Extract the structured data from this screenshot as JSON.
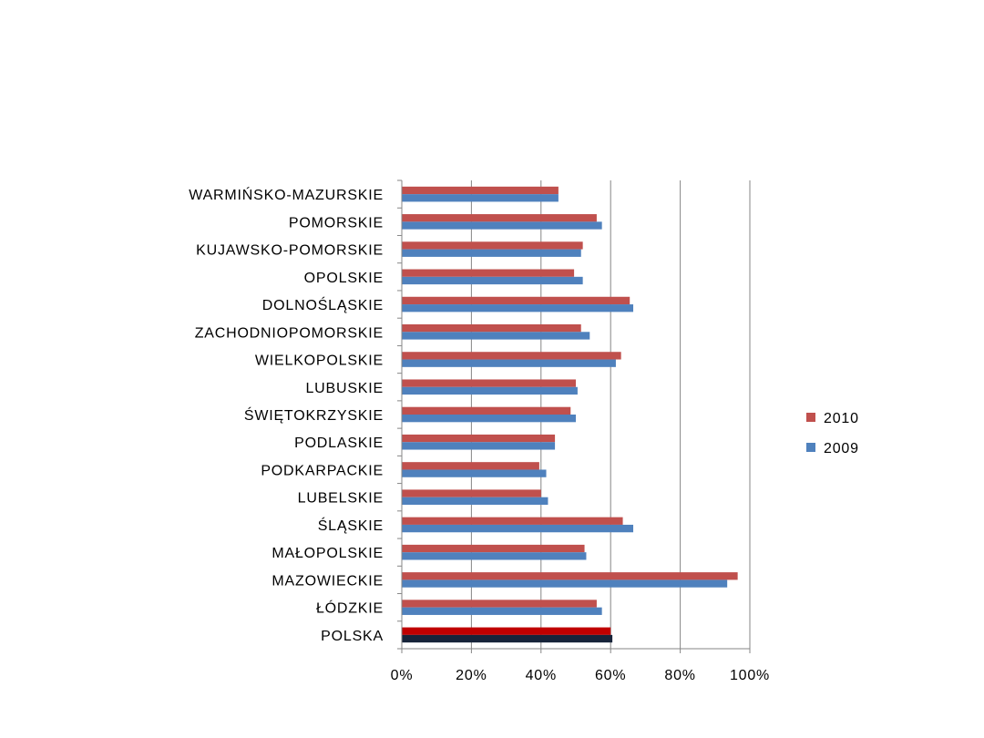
{
  "chart_data": {
    "type": "bar",
    "orientation": "horizontal",
    "title": "",
    "xlabel": "",
    "ylabel": "",
    "xlim": [
      0,
      100
    ],
    "x_ticks": [
      "0%",
      "20%",
      "40%",
      "60%",
      "80%",
      "100%"
    ],
    "grid": true,
    "legend_position": "right",
    "categories": [
      "WARMIŃSKO-MAZURSKIE",
      "POMORSKIE",
      "KUJAWSKO-POMORSKIE",
      "OPOLSKIE",
      "DOLNOŚLĄSKIE",
      "ZACHODNIOPOMORSKIE",
      "WIELKOPOLSKIE",
      "LUBUSKIE",
      "ŚWIĘTOKRZYSKIE",
      "PODLASKIE",
      "PODKARPACKIE",
      "LUBELSKIE",
      "ŚLĄSKIE",
      "MAŁOPOLSKIE",
      "MAZOWIECKIE",
      "ŁÓDZKIE",
      "POLSKA"
    ],
    "series": [
      {
        "name": "2010",
        "color": "#c0504d",
        "highlight_color": "#c00000",
        "values": [
          45,
          56,
          52,
          49.5,
          65.5,
          51.5,
          63,
          50,
          48.5,
          44,
          39.5,
          40,
          63.5,
          52.5,
          96.5,
          56,
          60
        ]
      },
      {
        "name": "2009",
        "color": "#4f81bd",
        "highlight_color": "#17243a",
        "values": [
          45,
          57.5,
          51.5,
          52,
          66.5,
          54,
          61.5,
          50.5,
          50,
          44,
          41.5,
          42,
          66.5,
          53,
          93.5,
          57.5,
          60.5
        ]
      }
    ],
    "highlight_category": "POLSKA"
  }
}
